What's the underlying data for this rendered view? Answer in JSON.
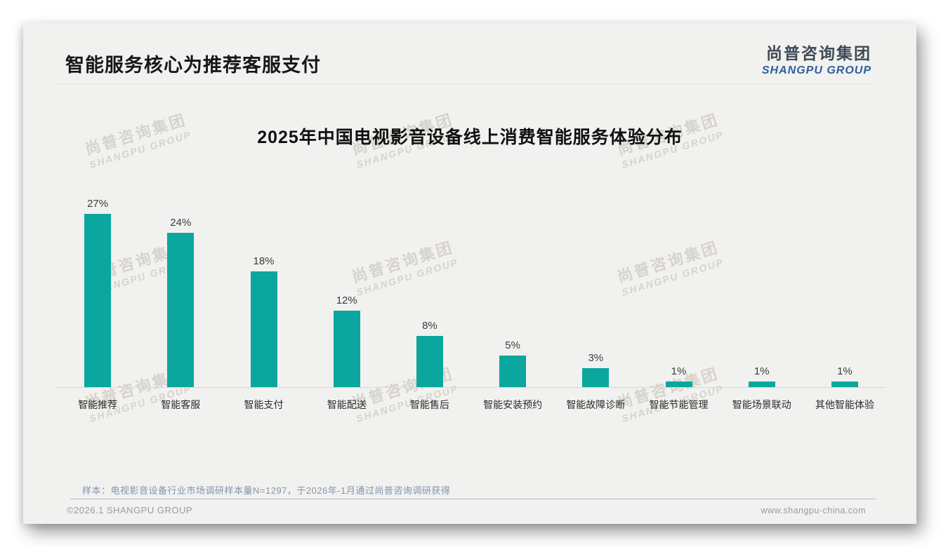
{
  "slide": {
    "title": "智能服务核心为推荐客服支付",
    "logo": {
      "cn": "尚普咨询集团",
      "en": "SHANGPU GROUP"
    },
    "watermark": {
      "cn": "尚普咨询集团",
      "en": "SHANGPU GROUP"
    },
    "note": "样本：电视影音设备行业市场调研样本量N=1297，于2026年-1月通过尚普咨询调研获得",
    "footer_left": "©2026.1 SHANGPU GROUP",
    "footer_right": "www.shangpu-china.com"
  },
  "colors": {
    "bar": "#0ba69e",
    "logo_blue": "#2e5f9d",
    "logo_dark": "#3e4a57",
    "note_text": "#8296ad",
    "card_bg": "#f1f1ef"
  },
  "chart_data": {
    "type": "bar",
    "title": "2025年中国电视影音设备线上消费智能服务体验分布",
    "categories": [
      "智能推荐",
      "智能客服",
      "智能支付",
      "智能配送",
      "智能售后",
      "智能安装预约",
      "智能故障诊断",
      "智能节能管理",
      "智能场景联动",
      "其他智能体验"
    ],
    "values": [
      27,
      24,
      18,
      12,
      8,
      5,
      3,
      1,
      1,
      1
    ],
    "unit": "%",
    "xlabel": "",
    "ylabel": "",
    "ylim": [
      0,
      30
    ],
    "grid": false,
    "legend": false,
    "data_labels": true
  }
}
